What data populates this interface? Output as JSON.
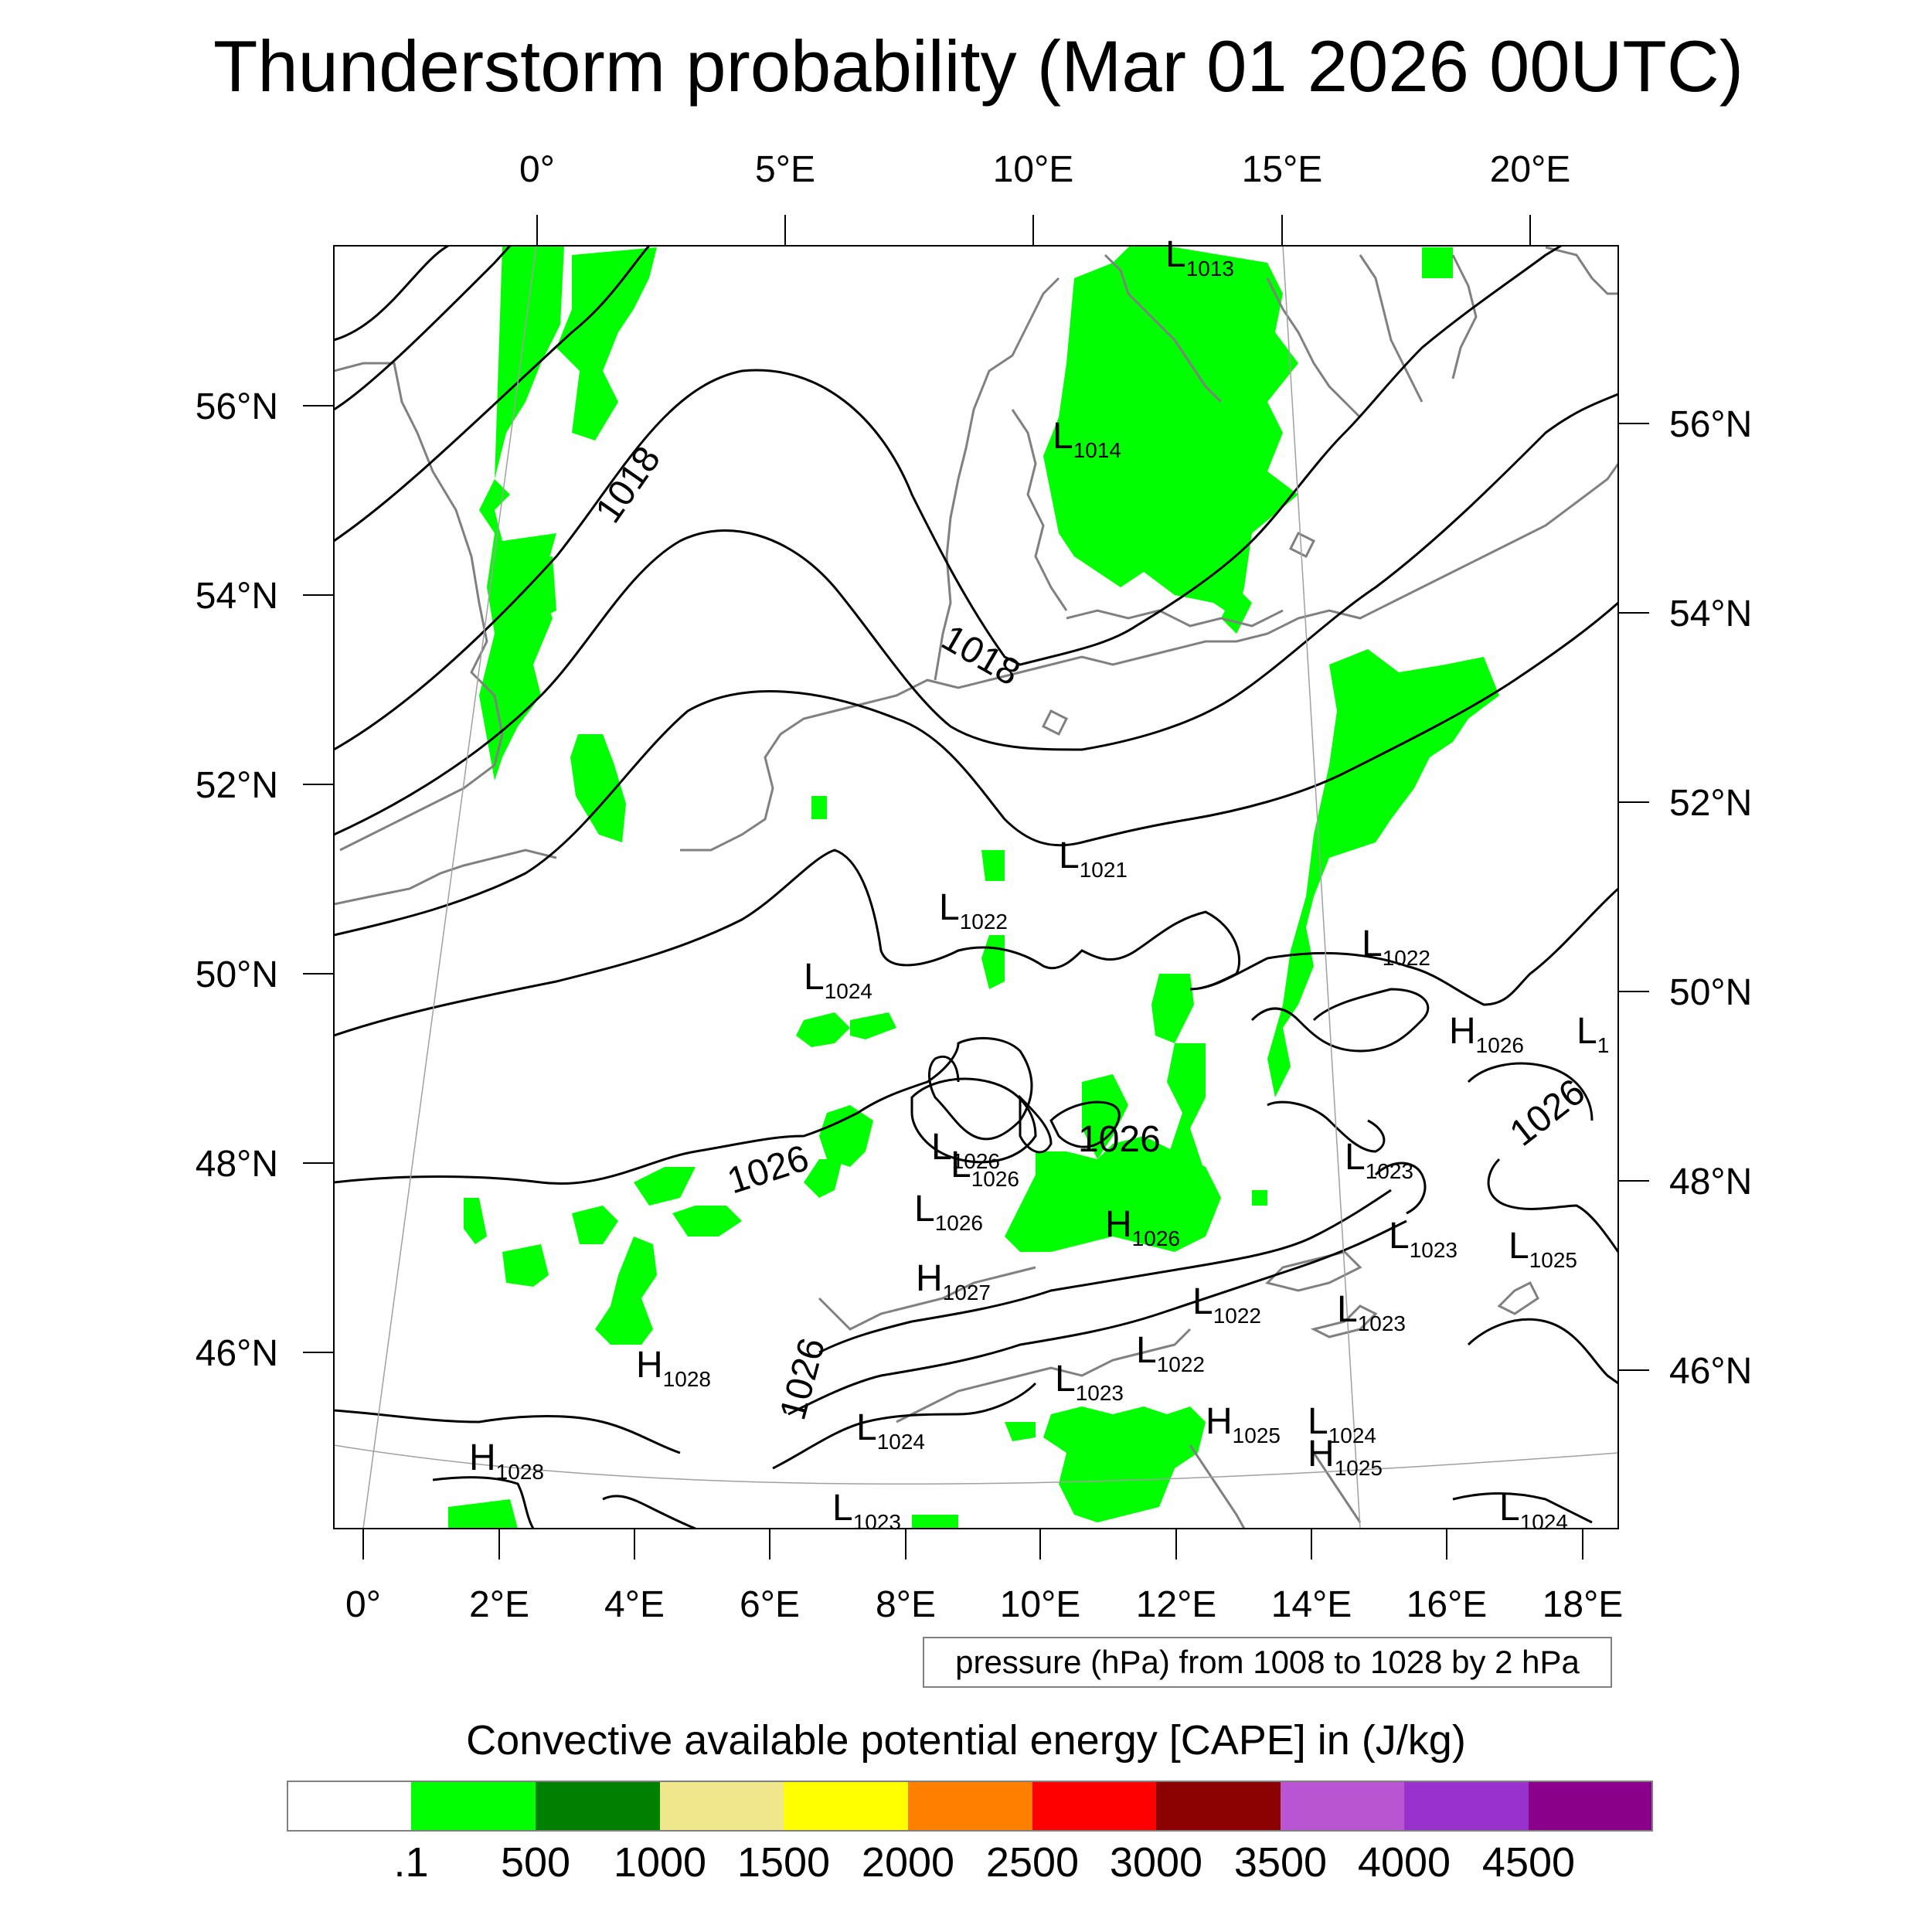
{
  "title": "Thunderstorm probability (Mar 01 2026 00UTC)",
  "top_lon_ticks": [
    "0°",
    "5°E",
    "10°E",
    "15°E",
    "20°E"
  ],
  "bottom_lon_ticks": [
    "0°",
    "2°E",
    "4°E",
    "6°E",
    "8°E",
    "10°E",
    "12°E",
    "14°E",
    "16°E",
    "18°E"
  ],
  "left_lat_ticks": [
    "56°N",
    "54°N",
    "52°N",
    "50°N",
    "48°N",
    "46°N"
  ],
  "right_lat_ticks": [
    "56°N",
    "54°N",
    "52°N",
    "50°N",
    "48°N",
    "46°N"
  ],
  "pressure_systems": [
    {
      "type": "L",
      "value": "1013"
    },
    {
      "type": "L",
      "value": "1014"
    },
    {
      "type": "L",
      "value": "1021"
    },
    {
      "type": "L",
      "value": "1022"
    },
    {
      "type": "L",
      "value": "1022"
    },
    {
      "type": "L",
      "value": "1024"
    },
    {
      "type": "H",
      "value": "1026"
    },
    {
      "type": "L",
      "value": "1"
    },
    {
      "type": "L",
      "value": "1026"
    },
    {
      "type": "L",
      "value": "1026"
    },
    {
      "type": "L",
      "value": "1026"
    },
    {
      "type": "H",
      "value": "1026"
    },
    {
      "type": "L",
      "value": "1023"
    },
    {
      "type": "L",
      "value": "1023"
    },
    {
      "type": "L",
      "value": "1025"
    },
    {
      "type": "H",
      "value": "1027"
    },
    {
      "type": "L",
      "value": "1022"
    },
    {
      "type": "L",
      "value": "1023"
    },
    {
      "type": "L",
      "value": "1022"
    },
    {
      "type": "H",
      "value": "1028"
    },
    {
      "type": "L",
      "value": "1023"
    },
    {
      "type": "H",
      "value": "1025"
    },
    {
      "type": "L",
      "value": "1024"
    },
    {
      "type": "L",
      "value": "1024"
    },
    {
      "type": "H",
      "value": "1025"
    },
    {
      "type": "H",
      "value": "1028"
    },
    {
      "type": "L",
      "value": "1023"
    },
    {
      "type": "L",
      "value": "1024"
    }
  ],
  "contour_labels": [
    "1018",
    "1018",
    "1026",
    "1026",
    "1026",
    "1026"
  ],
  "pressure_note": "pressure (hPa) from 1008 to 1028 by 2 hPa",
  "colorbar": {
    "title": "Convective available potential energy [CAPE] in (J/kg)",
    "colors": [
      "#ffffff",
      "#00ff00",
      "#008000",
      "#f0e68c",
      "#ffff00",
      "#ff8000",
      "#ff0000",
      "#8b0000",
      "#ba55d3",
      "#9932cc",
      "#8b008b"
    ],
    "labels": [
      ".1",
      "500",
      "1000",
      "1500",
      "2000",
      "2500",
      "3000",
      "3500",
      "4000",
      "4500"
    ]
  },
  "colors": {
    "cape_low": "#00ff00",
    "coastline": "#808080",
    "isobar": "#000000"
  }
}
